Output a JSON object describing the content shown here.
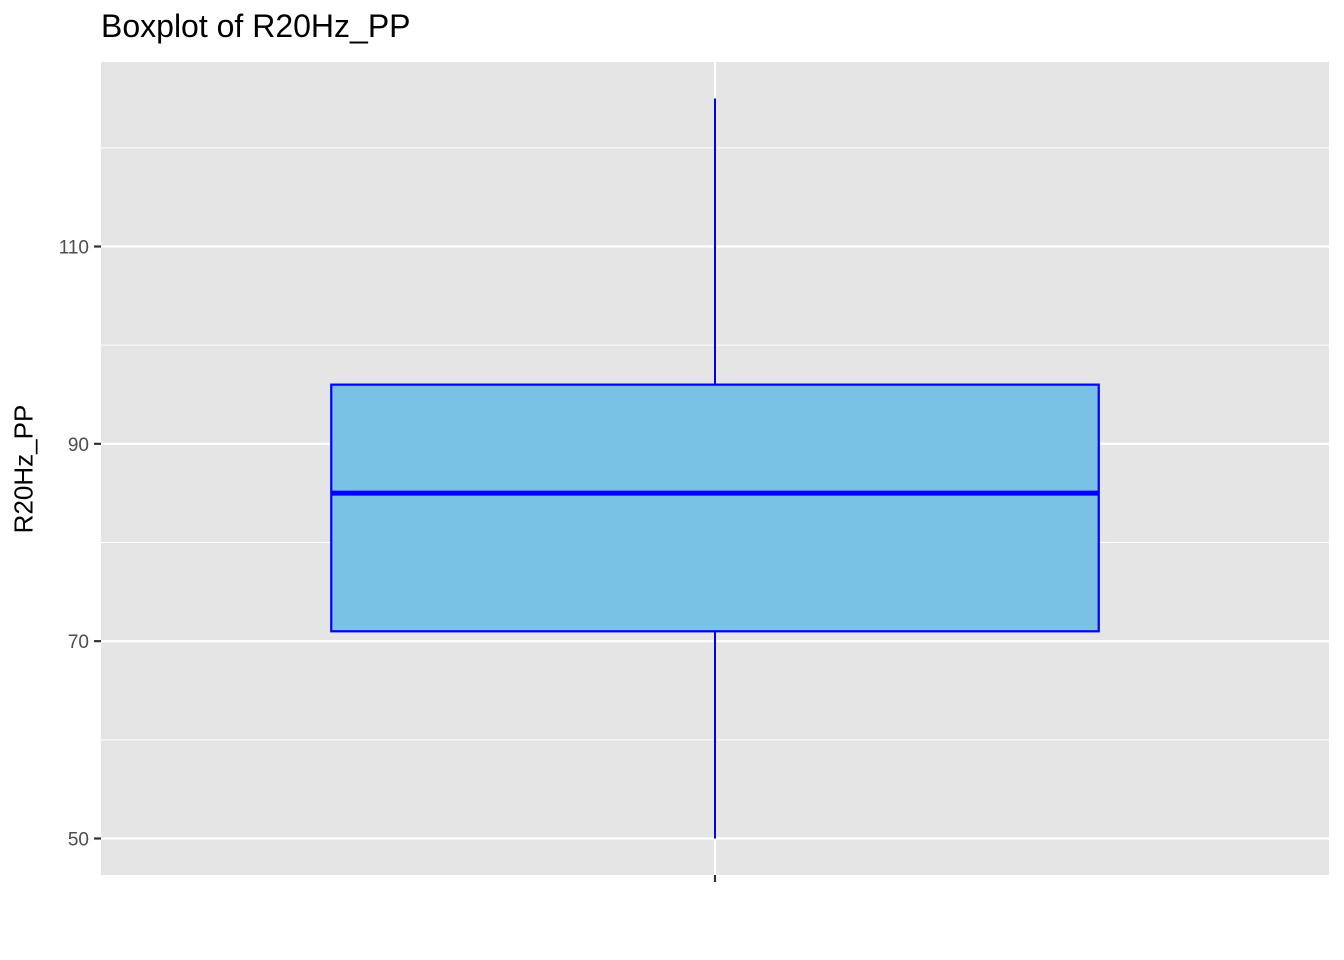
{
  "chart_data": {
    "type": "boxplot",
    "title": "Boxplot of R20Hz_PP",
    "xlabel": "",
    "ylabel": "R20Hz_PP",
    "ylim": [
      46.3,
      128.7
    ],
    "y_ticks": [
      50,
      70,
      90,
      110
    ],
    "y_minor_ticks": [
      60,
      80,
      100,
      120
    ],
    "grid": true,
    "categories": [
      ""
    ],
    "boxes": [
      {
        "min": 50,
        "q1": 71,
        "median": 85,
        "q3": 96,
        "max": 125
      }
    ],
    "colors": {
      "fill": "#79c1e5",
      "stroke": "#0000ff",
      "panel": "#e5e5e5",
      "grid": "#ffffff"
    }
  }
}
